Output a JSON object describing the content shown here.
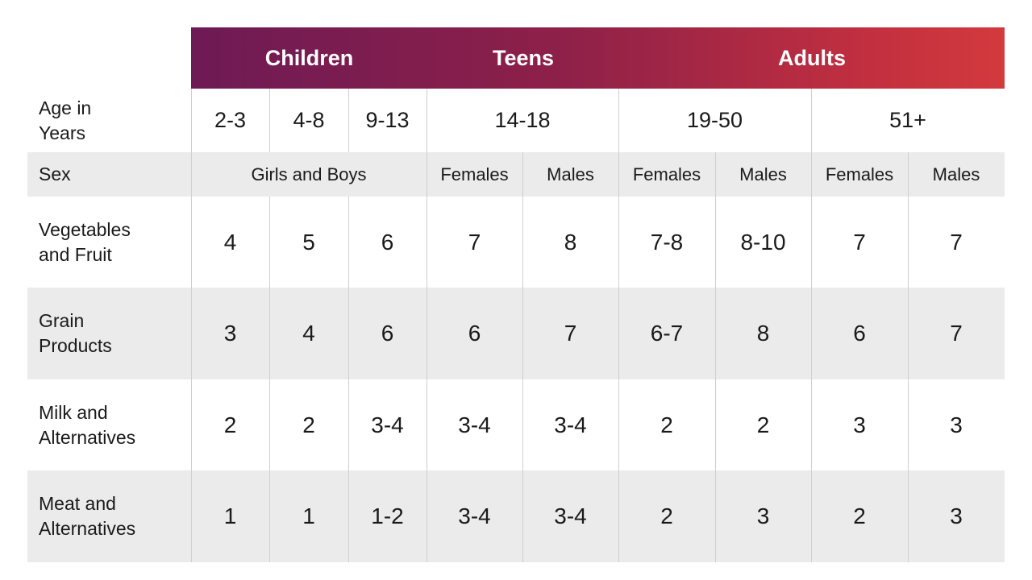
{
  "groups": {
    "children": "Children",
    "teens": "Teens",
    "adults": "Adults"
  },
  "labels": {
    "age": "Age in\nYears",
    "sex": "Sex",
    "veg": "Vegetables\nand Fruit",
    "grain": "Grain\nProducts",
    "milk": "Milk and\nAlternatives",
    "meat": "Meat and\nAlternatives"
  },
  "age_ranges": [
    "2-3",
    "4-8",
    "9-13",
    "14-18",
    "19-50",
    "51+"
  ],
  "sex": {
    "children": "Girls and Boys",
    "teens_f": "Females",
    "teens_m": "Males",
    "adults_f": "Females",
    "adults_m": "Males",
    "seniors_f": "Females",
    "seniors_m": "Males"
  },
  "rows": {
    "veg": [
      "4",
      "5",
      "6",
      "7",
      "8",
      "7-8",
      "8-10",
      "7",
      "7"
    ],
    "grain": [
      "3",
      "4",
      "6",
      "6",
      "7",
      "6-7",
      "8",
      "6",
      "7"
    ],
    "milk": [
      "2",
      "2",
      "3-4",
      "3-4",
      "3-4",
      "2",
      "2",
      "3",
      "3"
    ],
    "meat": [
      "1",
      "1",
      "1-2",
      "3-4",
      "3-4",
      "2",
      "3",
      "2",
      "3"
    ]
  },
  "colors": {
    "gradient_start": "#6e1a55",
    "gradient_end": "#d23a3d",
    "band": "#ebebeb",
    "divider": "#cfcfcf"
  }
}
